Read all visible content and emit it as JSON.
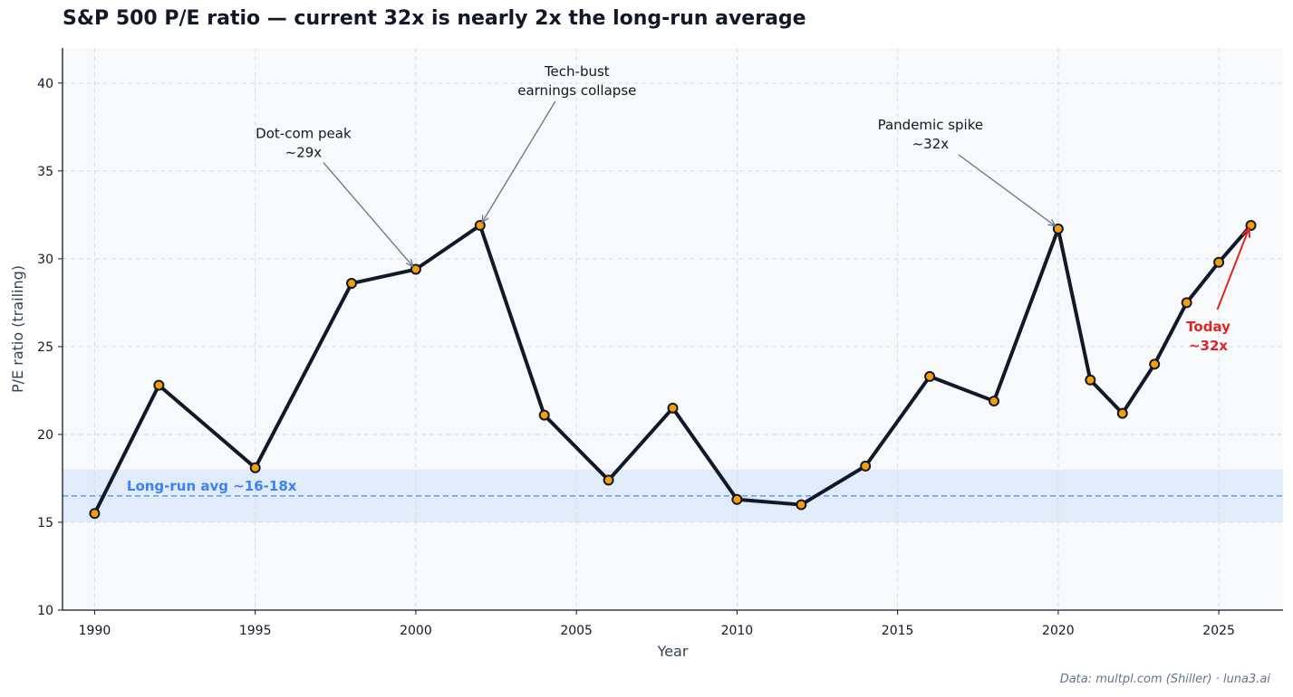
{
  "title": "S&P 500 P/E ratio — current 32x is nearly 2x the long-run average",
  "source": "Data: multpl.com (Shiller) · luna3.ai",
  "colors": {
    "line": "#111827",
    "marker_fill": "#f59e0b",
    "band": "#dbe6f8",
    "avg_line": "#60a5fa",
    "avg_text": "#3b82f6",
    "today": "#dc2626",
    "arrow": "#64748b",
    "plot_bg": "#f8f9fa"
  },
  "chart_data": {
    "type": "line",
    "xlabel": "Year",
    "ylabel": "P/E ratio (trailing)",
    "xlim": [
      1989,
      2027
    ],
    "ylim": [
      10,
      42
    ],
    "x_ticks": [
      1990,
      1995,
      2000,
      2005,
      2010,
      2015,
      2020,
      2025
    ],
    "y_ticks": [
      10,
      15,
      20,
      25,
      30,
      35,
      40
    ],
    "grid": true,
    "series": [
      {
        "x": [
          1990,
          1992,
          1995,
          1998,
          2000,
          2002,
          2004,
          2006,
          2008,
          2010,
          2012,
          2014,
          2016,
          2018,
          2020,
          2021,
          2022,
          2023,
          2024,
          2025,
          2026
        ],
        "values": [
          15.5,
          22.8,
          18.1,
          28.6,
          29.4,
          31.9,
          21.1,
          17.4,
          21.5,
          16.3,
          16.0,
          18.2,
          23.3,
          21.9,
          31.7,
          23.1,
          21.2,
          24.0,
          27.5,
          29.8,
          31.9
        ]
      }
    ],
    "band": {
      "from": 15,
      "to": 18,
      "line": 16.5,
      "label": "Long-run avg ~16-18x"
    },
    "annotations": [
      {
        "lines": [
          "Dot-com peak",
          "~29x"
        ],
        "x": 2000,
        "y": 29.4,
        "kind": "normal"
      },
      {
        "lines": [
          "Tech-bust",
          "earnings collapse"
        ],
        "x": 2002,
        "y": 31.9,
        "kind": "normal"
      },
      {
        "lines": [
          "Pandemic spike",
          "~32x"
        ],
        "x": 2020,
        "y": 31.7,
        "kind": "normal"
      },
      {
        "lines": [
          "Today",
          "~32x"
        ],
        "x": 2026,
        "y": 31.9,
        "kind": "highlight"
      }
    ]
  }
}
